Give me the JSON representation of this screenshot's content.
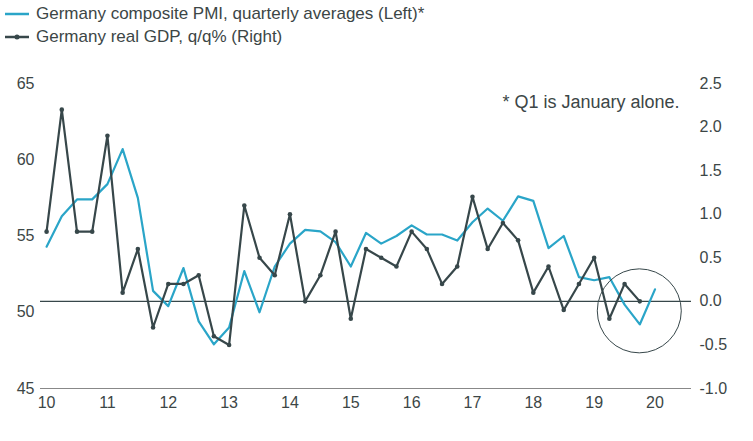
{
  "chart_data": {
    "type": "line",
    "legend": "top-left",
    "annotation": "* Q1 is January alone.",
    "x": [
      2010,
      2010.25,
      2010.5,
      2010.75,
      2011,
      2011.25,
      2011.5,
      2011.75,
      2012,
      2012.25,
      2012.5,
      2012.75,
      2013,
      2013.25,
      2013.5,
      2013.75,
      2014,
      2014.25,
      2014.5,
      2014.75,
      2015,
      2015.25,
      2015.5,
      2015.75,
      2016,
      2016.25,
      2016.5,
      2016.75,
      2017,
      2017.25,
      2017.5,
      2017.75,
      2018,
      2018.25,
      2018.5,
      2018.75,
      2019,
      2019.25,
      2019.5,
      2019.75,
      2020
    ],
    "xlim": [
      2009.9,
      2020.6
    ],
    "xticks": [
      {
        "value": 2010,
        "label": "10"
      },
      {
        "value": 2011,
        "label": "11"
      },
      {
        "value": 2012,
        "label": "12"
      },
      {
        "value": 2013,
        "label": "13"
      },
      {
        "value": 2014,
        "label": "14"
      },
      {
        "value": 2015,
        "label": "15"
      },
      {
        "value": 2016,
        "label": "16"
      },
      {
        "value": 2017,
        "label": "17"
      },
      {
        "value": 2018,
        "label": "18"
      },
      {
        "value": 2019,
        "label": "19"
      },
      {
        "value": 2020,
        "label": "20"
      }
    ],
    "ylim": [
      45,
      65
    ],
    "yticks": [
      45,
      50,
      55,
      60,
      65
    ],
    "y2lim": [
      -1,
      2.5
    ],
    "y2ticks": [
      {
        "value": -1,
        "label": "-1.0"
      },
      -0.5,
      {
        "value": 0,
        "label": "0.0"
      },
      0.5,
      {
        "value": 1,
        "label": "1.0"
      },
      1.5,
      {
        "value": 2,
        "label": "2.0"
      },
      2.5
    ],
    "series": [
      {
        "name": "Germany composite PMI, quarterly averages (Left)*",
        "color": "#2aa5c8",
        "marker": "none",
        "values": [
          54.3,
          56.3,
          57.4,
          57.4,
          58.4,
          60.7,
          57.5,
          51.4,
          50.4,
          52.9,
          49.4,
          47.9,
          49.0,
          52.7,
          50.0,
          53.0,
          54.5,
          55.4,
          55.3,
          54.6,
          53.0,
          55.2,
          54.5,
          55.0,
          55.7,
          55.1,
          55.1,
          54.7,
          55.9,
          56.8,
          56.0,
          57.6,
          57.3,
          54.2,
          55.0,
          52.3,
          52.1,
          52.3,
          50.5,
          49.2,
          51.5
        ]
      },
      {
        "name": "Germany real GDP, q/q% (Right)",
        "color": "#37474a",
        "marker": "circle",
        "axis": "y2",
        "values": [
          0.8,
          2.2,
          0.8,
          0.8,
          1.9,
          0.1,
          0.6,
          -0.3,
          0.2,
          0.2,
          0.3,
          -0.4,
          -0.5,
          1.1,
          0.5,
          0.3,
          1.0,
          0.0,
          0.3,
          0.8,
          -0.2,
          0.6,
          0.5,
          0.4,
          0.8,
          0.6,
          0.2,
          0.4,
          1.2,
          0.6,
          0.9,
          0.7,
          0.1,
          0.4,
          -0.1,
          0.2,
          0.5,
          -0.2,
          0.2,
          0.0,
          null
        ]
      }
    ]
  }
}
